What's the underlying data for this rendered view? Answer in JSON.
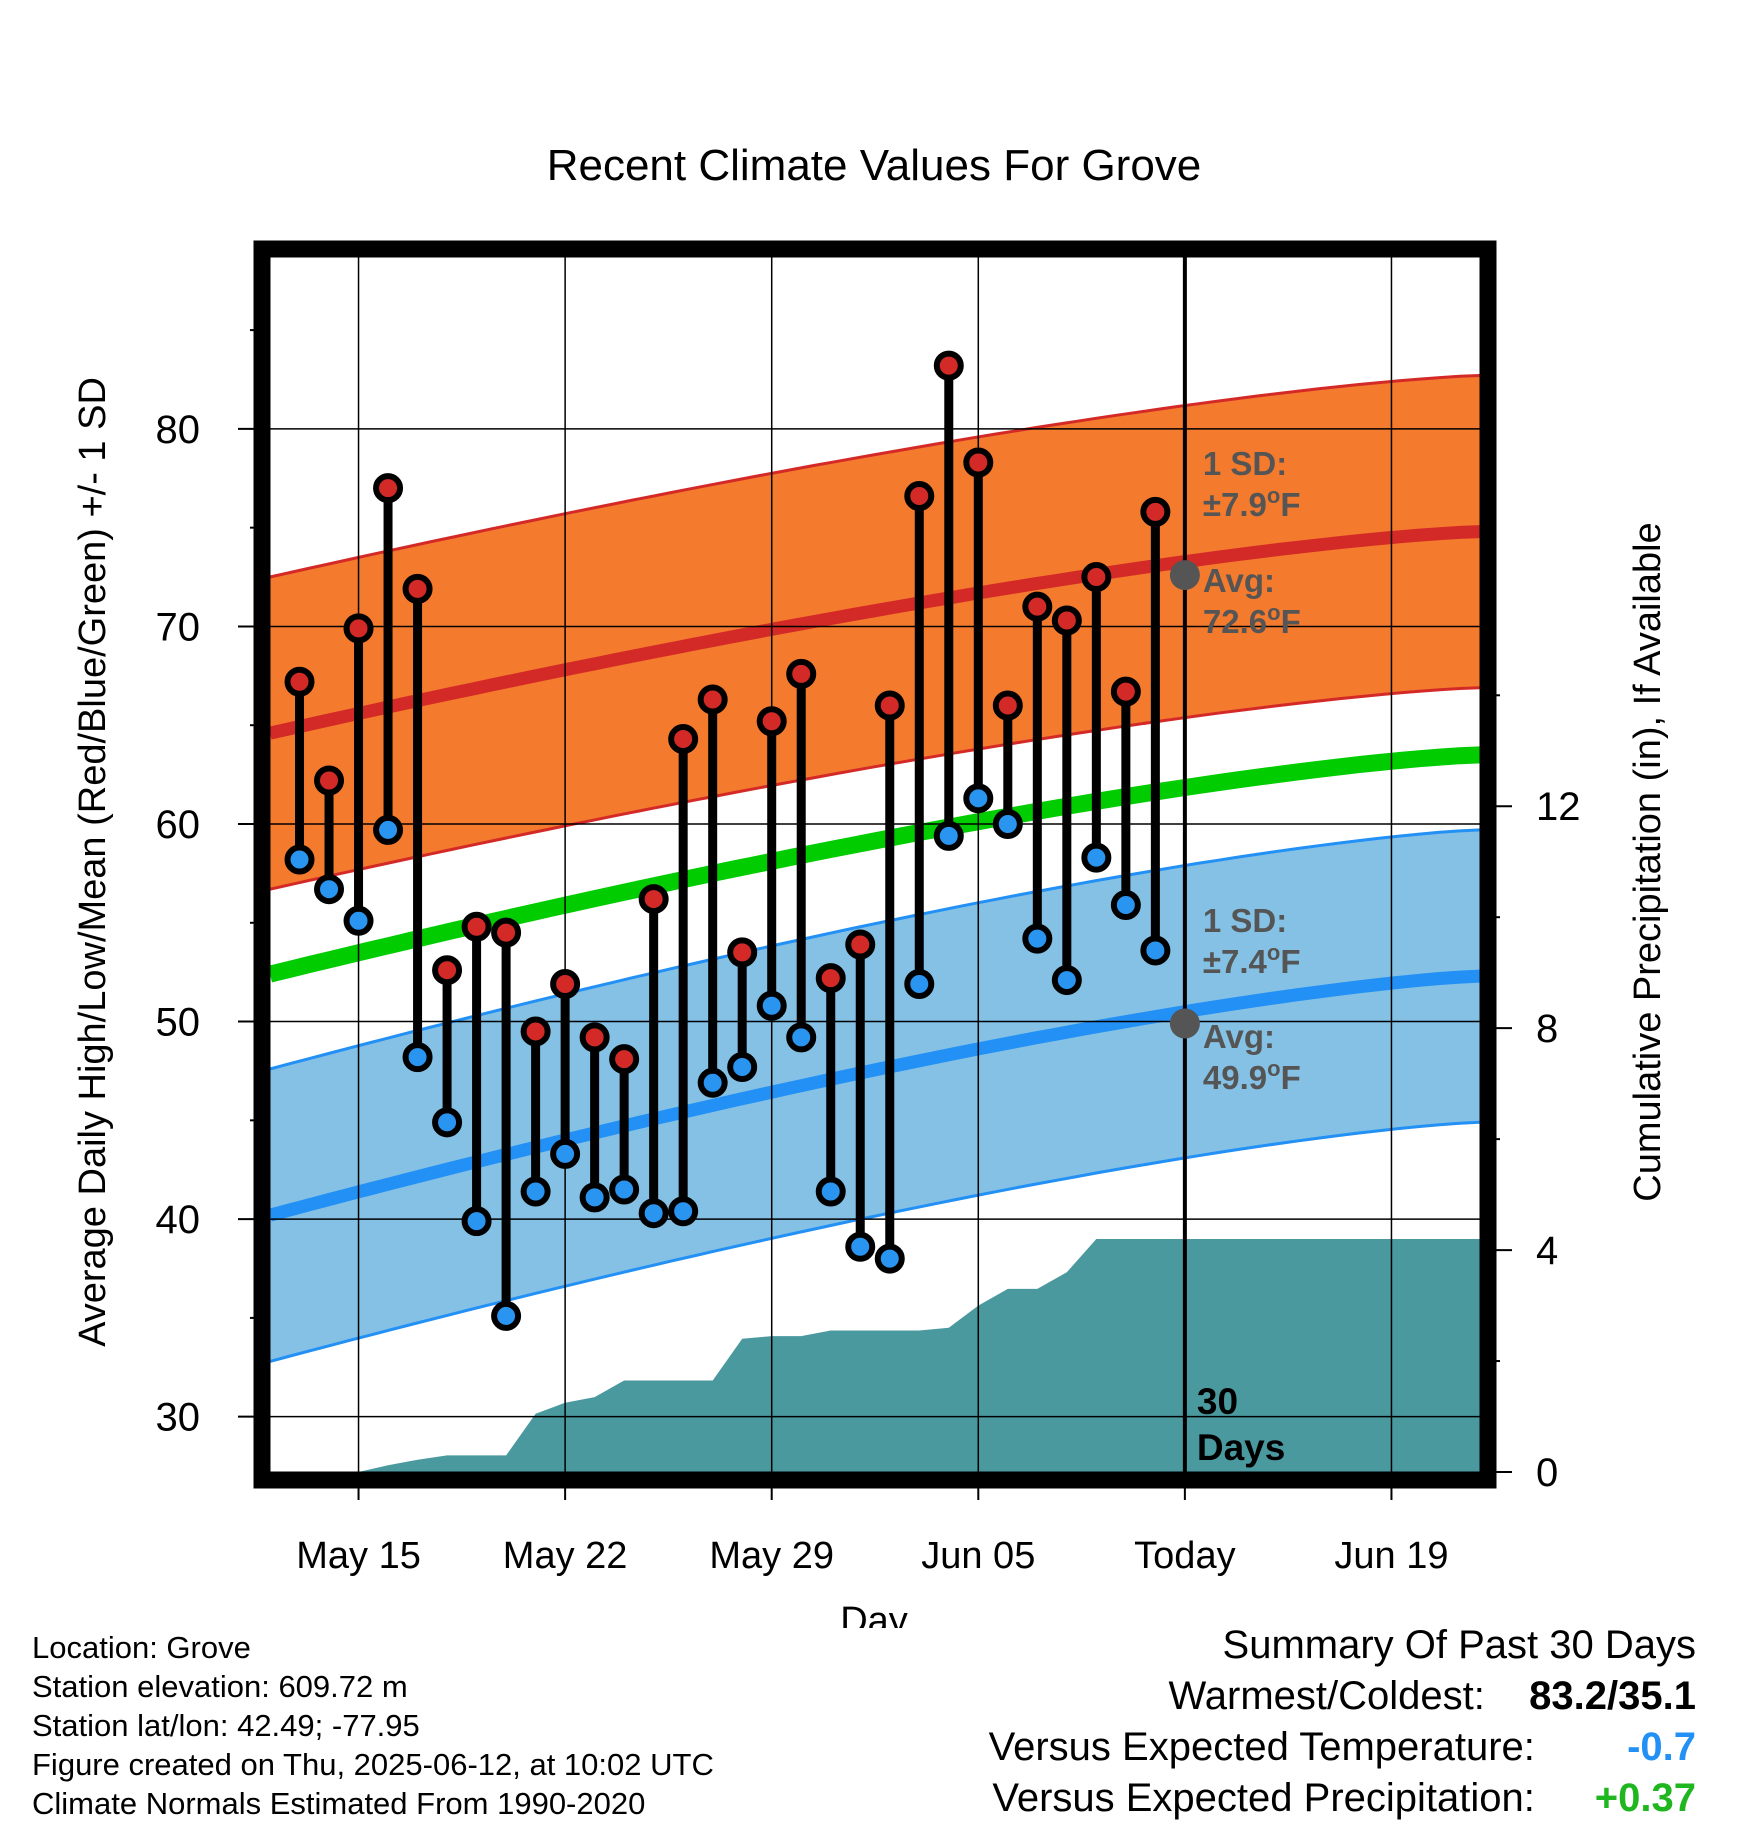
{
  "chart_data": {
    "type": "line",
    "title": "Recent Climate Values For Grove",
    "xlabel": "Day",
    "ylabel": "Average Daily High/Low/Mean (Red/Blue/Green) +/- 1 SD",
    "y2label": "Cumulative Precipitation (in), If Available",
    "ylim": [
      27.2,
      88.7
    ],
    "y2lim": [
      0,
      21.9
    ],
    "x_tick_labels": [
      "May 15",
      "May 22",
      "May 29",
      "Jun 05",
      "Today",
      "Jun 19"
    ],
    "y_ticks": [
      30,
      40,
      50,
      60,
      70,
      80
    ],
    "y2_ticks": [
      0,
      4,
      8,
      12
    ],
    "x_start": "2025-05-12",
    "x_end": "2025-06-22",
    "today": "2025-06-12",
    "period_label": [
      "30",
      "Days"
    ],
    "daily": {
      "dates": [
        "2025-05-13",
        "2025-05-14",
        "2025-05-15",
        "2025-05-16",
        "2025-05-17",
        "2025-05-18",
        "2025-05-19",
        "2025-05-20",
        "2025-05-21",
        "2025-05-22",
        "2025-05-23",
        "2025-05-24",
        "2025-05-25",
        "2025-05-26",
        "2025-05-27",
        "2025-05-28",
        "2025-05-29",
        "2025-05-30",
        "2025-05-31",
        "2025-06-01",
        "2025-06-02",
        "2025-06-03",
        "2025-06-04",
        "2025-06-05",
        "2025-06-06",
        "2025-06-07",
        "2025-06-08",
        "2025-06-09",
        "2025-06-10",
        "2025-06-11"
      ],
      "high": [
        67.2,
        62.2,
        69.9,
        77.0,
        71.9,
        52.6,
        54.8,
        54.5,
        49.5,
        51.9,
        49.2,
        48.1,
        56.2,
        64.3,
        66.3,
        53.5,
        65.2,
        67.6,
        52.2,
        53.9,
        66.0,
        76.6,
        83.2,
        78.3,
        66.0,
        71.0,
        70.3,
        72.5,
        66.7,
        75.8
      ],
      "low": [
        58.2,
        56.7,
        55.1,
        59.7,
        48.2,
        44.9,
        39.9,
        35.1,
        41.4,
        43.3,
        41.1,
        41.5,
        40.3,
        40.4,
        46.9,
        47.7,
        50.8,
        49.2,
        41.4,
        38.6,
        38.0,
        51.9,
        59.4,
        61.3,
        60.0,
        54.2,
        52.1,
        58.3,
        55.9,
        53.6
      ]
    },
    "normal_high": {
      "start": 64.6,
      "end": 74.8,
      "sd": 7.9,
      "today": 72.6
    },
    "normal_low": {
      "start": 40.2,
      "end": 52.3,
      "sd": 7.4,
      "today": 49.9
    },
    "normal_mean": {
      "start": 52.4,
      "end": 63.5
    },
    "precip_cumulative": [
      {
        "date": "2025-05-13",
        "value": 0.0
      },
      {
        "date": "2025-05-15",
        "value": 0.0
      },
      {
        "date": "2025-05-16",
        "value": 0.12
      },
      {
        "date": "2025-05-17",
        "value": 0.22
      },
      {
        "date": "2025-05-18",
        "value": 0.3
      },
      {
        "date": "2025-05-20",
        "value": 0.3
      },
      {
        "date": "2025-05-21",
        "value": 1.05
      },
      {
        "date": "2025-05-22",
        "value": 1.25
      },
      {
        "date": "2025-05-23",
        "value": 1.35
      },
      {
        "date": "2025-05-24",
        "value": 1.65
      },
      {
        "date": "2025-05-26",
        "value": 1.65
      },
      {
        "date": "2025-05-27",
        "value": 1.65
      },
      {
        "date": "2025-05-28",
        "value": 2.4
      },
      {
        "date": "2025-05-29",
        "value": 2.45
      },
      {
        "date": "2025-05-30",
        "value": 2.45
      },
      {
        "date": "2025-05-31",
        "value": 2.55
      },
      {
        "date": "2025-06-03",
        "value": 2.55
      },
      {
        "date": "2025-06-04",
        "value": 2.6
      },
      {
        "date": "2025-06-05",
        "value": 3.0
      },
      {
        "date": "2025-06-06",
        "value": 3.3
      },
      {
        "date": "2025-06-07",
        "value": 3.3
      },
      {
        "date": "2025-06-08",
        "value": 3.6
      },
      {
        "date": "2025-06-09",
        "value": 4.2
      },
      {
        "date": "2025-06-22",
        "value": 4.2
      }
    ],
    "annotations": {
      "high_sd_label": "1 SD:",
      "high_sd_value": "±7.9",
      "high_avg_label": "Avg:",
      "high_avg_value": "72.6",
      "low_sd_label": "1 SD:",
      "low_sd_value": "±7.4",
      "low_avg_label": "Avg:",
      "low_avg_value": "49.9",
      "unit": "F",
      "degree": "o"
    },
    "colors": {
      "high_band": "#F47A2E",
      "high_line": "#D42A27",
      "low_band": "#84C1E5",
      "low_line": "#2290F5",
      "mean_line": "#00CC00",
      "precip": "#4A999F",
      "high_dot": "#D42A27",
      "low_dot": "#2A95F0",
      "annotation": "#555555"
    }
  },
  "footer": {
    "location": "Location: Grove",
    "elevation": "Station elevation: 609.72 m",
    "latlon": "Station lat/lon: 42.49; -77.95",
    "created": "Figure created on Thu, 2025-06-12, at 10:02 UTC",
    "normals": "Climate Normals Estimated From 1990-2020"
  },
  "summary": {
    "title": "Summary Of Past 30 Days",
    "warm_cold_label": "Warmest/Coldest:",
    "warm_cold_value": "83.2/35.1",
    "temp_label": "Versus Expected Temperature:",
    "temp_value": "-0.7",
    "temp_color": "#2290F5",
    "precip_label": "Versus Expected Precipitation:",
    "precip_value": "+0.37",
    "precip_color": "#1FB61F"
  }
}
